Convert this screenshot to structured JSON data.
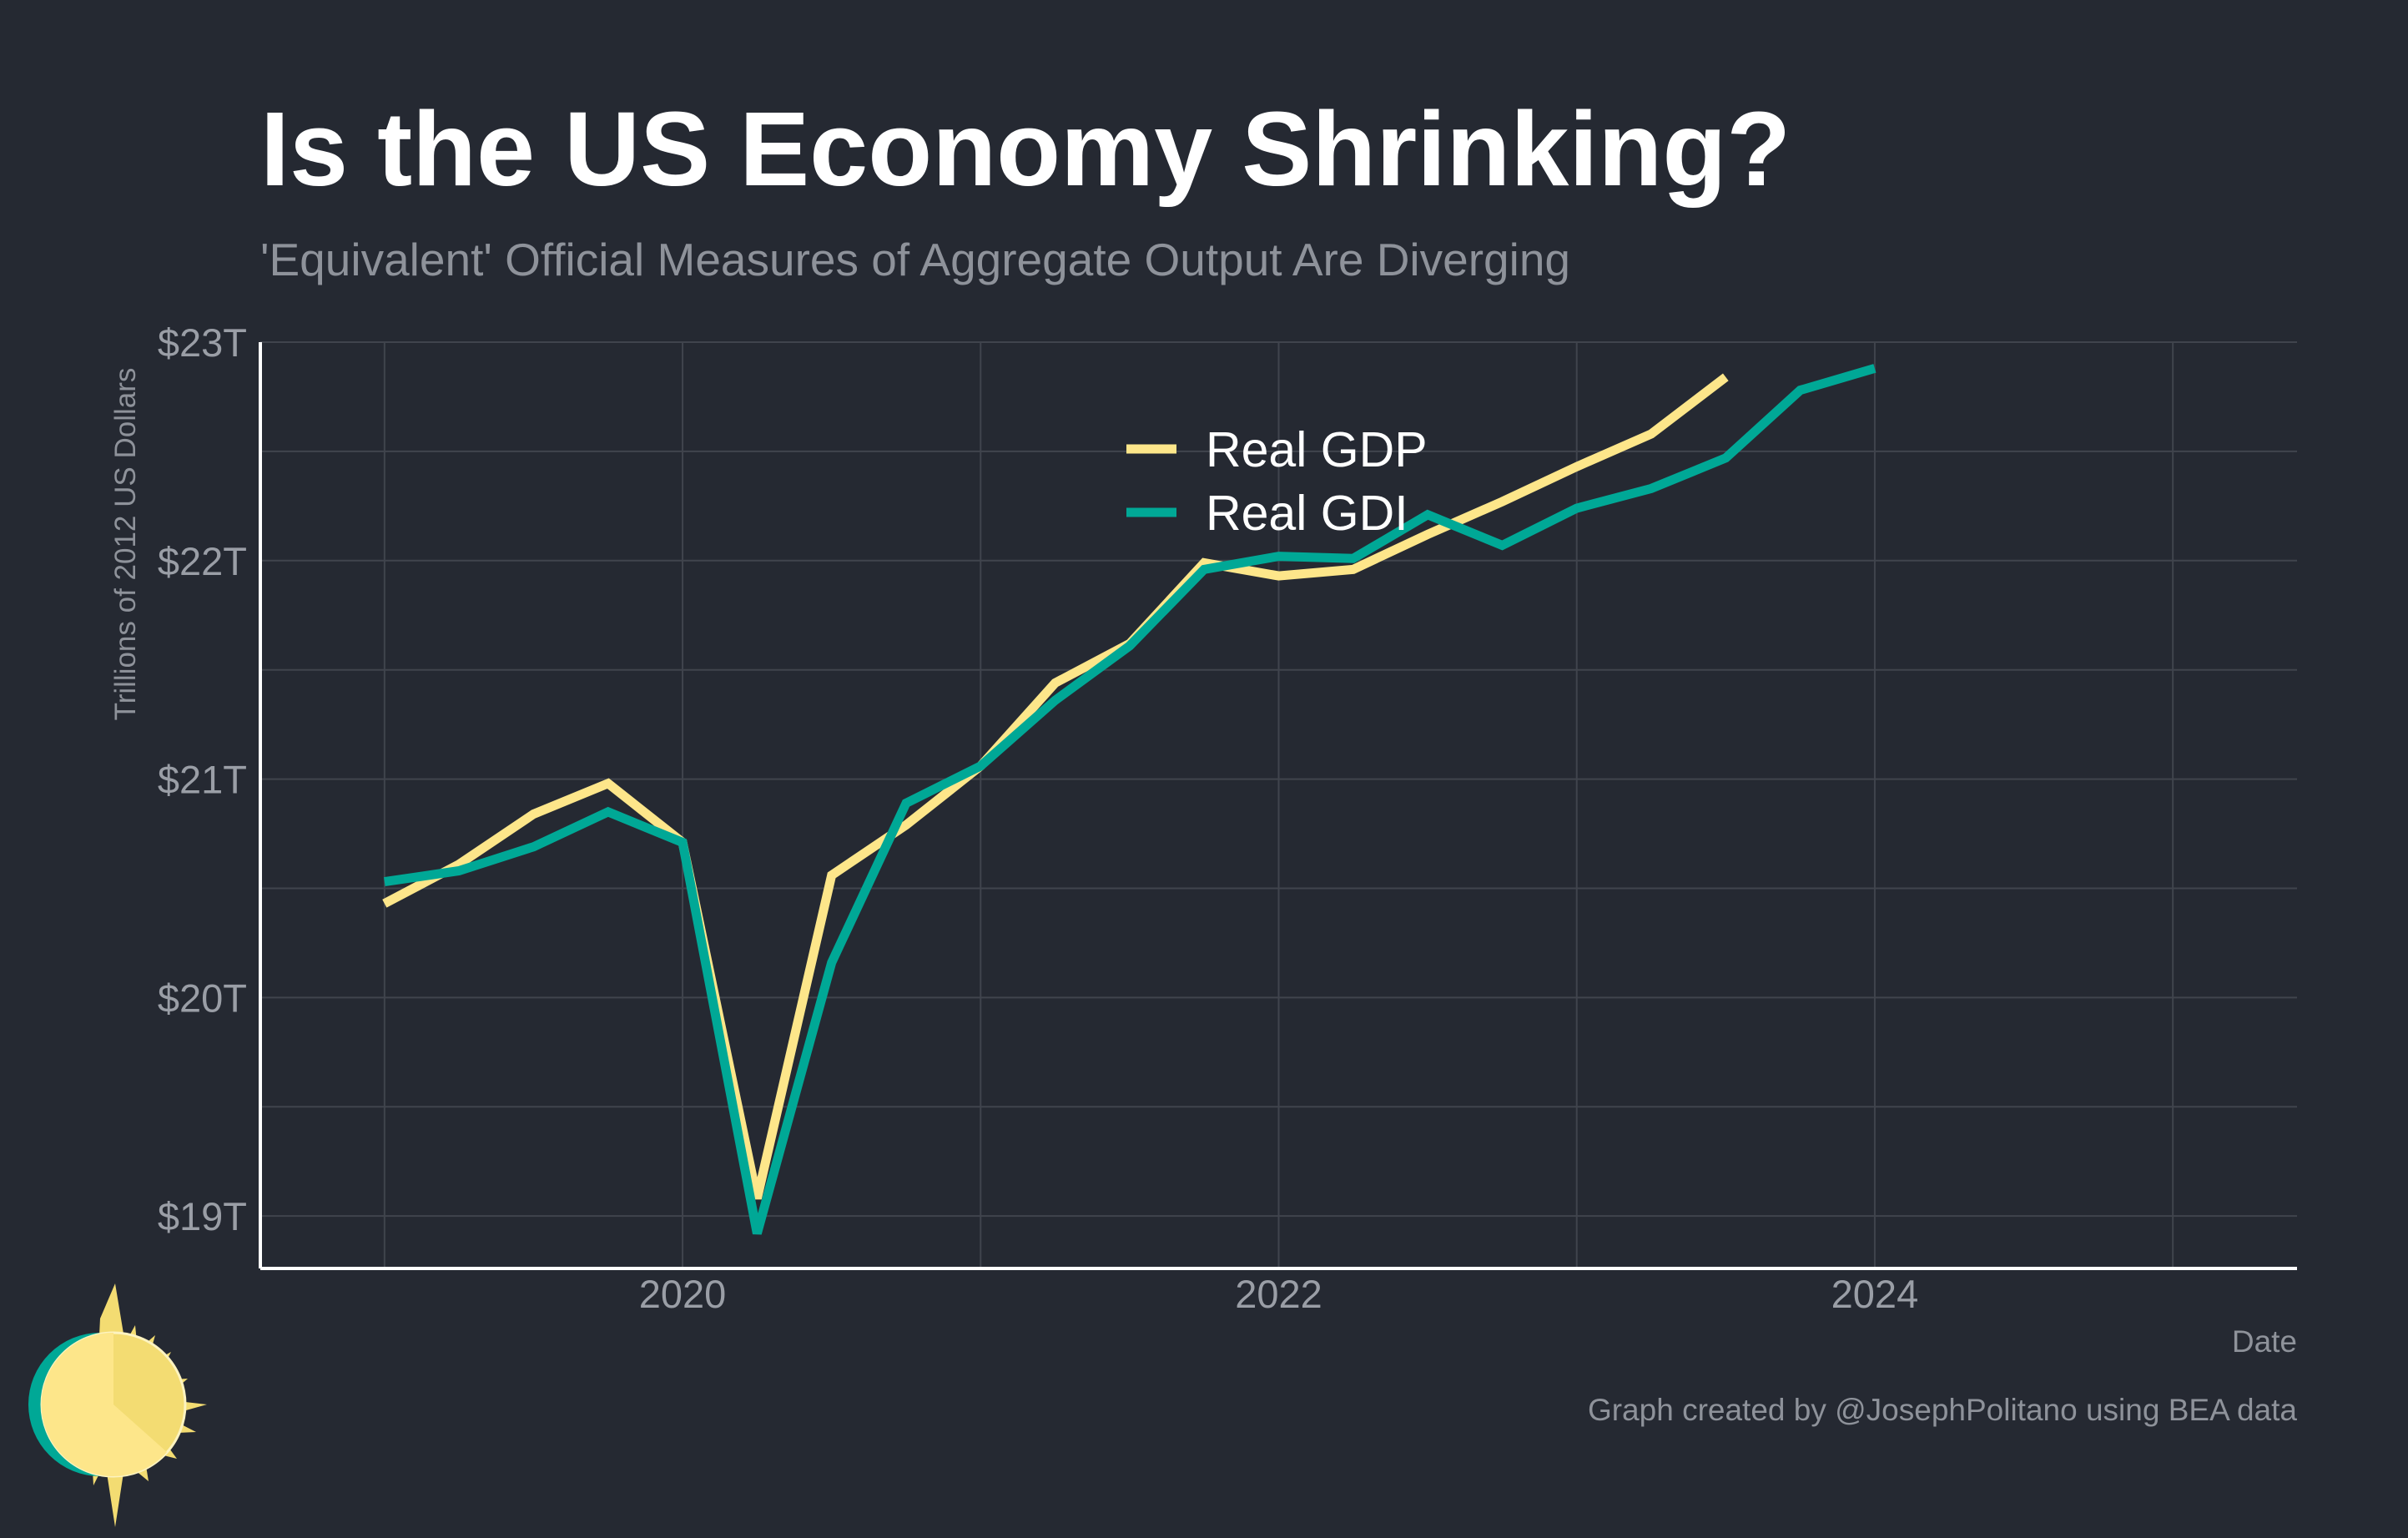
{
  "chart_data": {
    "type": "line",
    "title": "Is the US Economy Shrinking?",
    "subtitle": "'Equivalent' Official Measures of Aggregate Output Are Diverging",
    "xlabel": "Date",
    "ylabel": "Trillions of 2012 US Dollars",
    "caption": "Graph created by @JosephPolitano using BEA data",
    "ylim": [
      18.76,
      23.0
    ],
    "xlim": [
      "2018-08",
      "2025-06"
    ],
    "y_ticks": [
      {
        "value": 19,
        "label": "$19T"
      },
      {
        "value": 20,
        "label": "$20T"
      },
      {
        "value": 21,
        "label": "$21T"
      },
      {
        "value": 22,
        "label": "$22T"
      },
      {
        "value": 23,
        "label": "$23T"
      }
    ],
    "x_ticks": [
      {
        "value": "2020-01",
        "label": "2020"
      },
      {
        "value": "2022-01",
        "label": "2022"
      },
      {
        "value": "2024-01",
        "label": "2024"
      }
    ],
    "grid": true,
    "legend": "top-center",
    "series": [
      {
        "name": "Real GDP",
        "color": "#fde68a",
        "x": [
          "2019-01",
          "2019-04",
          "2019-07",
          "2019-10",
          "2020-01",
          "2020-04",
          "2020-07",
          "2020-10",
          "2021-01",
          "2021-04",
          "2021-07",
          "2021-10",
          "2022-01",
          "2022-04",
          "2022-07",
          "2022-10",
          "2023-01",
          "2023-04",
          "2023-07"
        ],
        "values": [
          20.43,
          20.61,
          20.84,
          20.98,
          20.71,
          19.08,
          20.56,
          20.79,
          21.06,
          21.44,
          21.62,
          21.99,
          21.93,
          21.96,
          22.12,
          22.27,
          22.43,
          22.58,
          22.84
        ]
      },
      {
        "name": "Real GDI",
        "color": "#00a896",
        "x": [
          "2019-01",
          "2019-04",
          "2019-07",
          "2019-10",
          "2020-01",
          "2020-04",
          "2020-07",
          "2020-10",
          "2021-01",
          "2021-04",
          "2021-07",
          "2021-10",
          "2022-01",
          "2022-04",
          "2022-07",
          "2022-10",
          "2023-01",
          "2023-04",
          "2023-07",
          "2023-10",
          "2024-01"
        ],
        "values": [
          20.53,
          20.58,
          20.69,
          20.85,
          20.71,
          18.92,
          20.16,
          20.89,
          21.06,
          21.36,
          21.61,
          21.96,
          22.02,
          22.01,
          22.21,
          22.07,
          22.24,
          22.33,
          22.47,
          22.78,
          22.88
        ]
      }
    ]
  },
  "logo": {
    "name": "sun-logo-icon",
    "colors": [
      "#fde68a",
      "#f3dc72",
      "#00a896"
    ]
  }
}
